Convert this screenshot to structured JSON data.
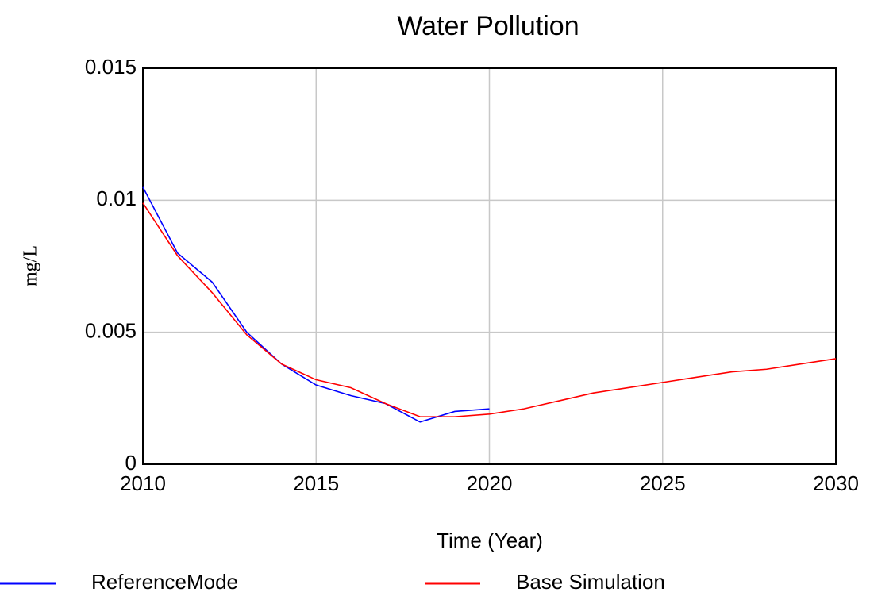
{
  "chart_data": {
    "type": "line",
    "title": "Water Pollution",
    "x_label": "Time (Year)",
    "y_label": "mg/L",
    "x": [
      2010,
      2011,
      2012,
      2013,
      2014,
      2015,
      2016,
      2017,
      2018,
      2019,
      2020,
      2021,
      2022,
      2023,
      2024,
      2025,
      2026,
      2027,
      2028,
      2029,
      2030
    ],
    "series": [
      {
        "name": "ReferenceMode",
        "color": "#0000ff",
        "values": [
          0.0105,
          0.008,
          0.0069,
          0.005,
          0.0038,
          0.003,
          0.0026,
          0.0023,
          0.0016,
          0.002,
          0.0021,
          null,
          null,
          null,
          null,
          null,
          null,
          null,
          null,
          null,
          null
        ]
      },
      {
        "name": "Base Simulation",
        "color": "#ff0000",
        "values": [
          0.0099,
          0.0079,
          0.0065,
          0.0049,
          0.0038,
          0.0032,
          0.0029,
          0.0023,
          0.0018,
          0.0018,
          0.0019,
          0.0021,
          0.0024,
          0.0027,
          0.0029,
          0.0031,
          0.0033,
          0.0035,
          0.0036,
          0.0038,
          0.004
        ]
      }
    ],
    "xlim": [
      2010,
      2030
    ],
    "xticks": [
      2010,
      2015,
      2020,
      2025,
      2030
    ],
    "ylim": [
      0,
      0.015
    ],
    "yticks": [
      0,
      0.005,
      0.01,
      0.015
    ],
    "grid": true,
    "legend": "bottom"
  }
}
